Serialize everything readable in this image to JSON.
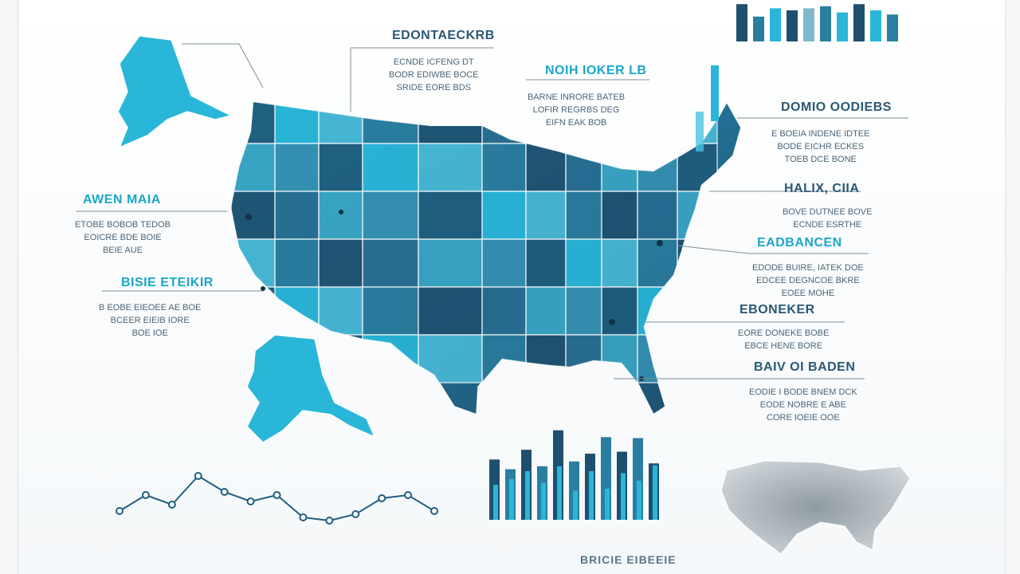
{
  "colors": {
    "navy": "#1f4f6e",
    "teal": "#2a7fa0",
    "cyan": "#29b6d8",
    "gray": "#9aa4ab"
  },
  "labels": [
    {
      "id": "top-center",
      "title": "EDONTAECKRB",
      "body": "ECNDE ICFENG DT\nBODR EDIWBE BOCE\nSRIDE EORE BDS"
    },
    {
      "id": "upper-mid",
      "title": "NOIH IOKER LB",
      "body": "BARNE INRORE BATEB\nLOFIR REGRBS DEG\nEIFN EAK BOB"
    },
    {
      "id": "right-1",
      "title": "DOMIO OODIEBS",
      "body": "E BOEIA INDENE IDTEE\nBODE EICHR ECKES\nTOEB DCE BONE"
    },
    {
      "id": "right-2",
      "title": "HALIX, CIIA",
      "body": "BOVE DUTNEE BOVE\nECNDE ESRTHE"
    },
    {
      "id": "right-3",
      "title": "EADBANCEN",
      "body": "EDODE BUIRE, IATEK DOE\nEDCEE DEGNCOE BKRE\nEOEE MOHE"
    },
    {
      "id": "right-4",
      "title": "EBONEKER",
      "body": "EORE DONEKE BOBE\nEBCE HENE BORE"
    },
    {
      "id": "right-5",
      "title": "BAIV OI BADEN",
      "body": "EODIE I BODE BNEM DCK\nEODE NOBRE E ABE\nCORE IOEIE OOE"
    },
    {
      "id": "left-1",
      "title": "AWEN MAIA",
      "body": "ETOBE BOBOB TEDOB\nEOICRE BDE BOIE\nBEIE AUE"
    },
    {
      "id": "left-2",
      "title": "BISIE ETEIKIR",
      "body": "B EOBE EIEOEE AE BOE\nBCEER EIEIB IORE\nBOE IOE"
    }
  ],
  "footer": "BRICIE EIBEEIE",
  "bottom_bar_values": [
    0.62,
    0.52,
    0.72,
    0.55,
    0.92,
    0.6,
    0.68,
    0.85,
    0.7,
    0.84,
    0.58
  ],
  "bottom_bar_overlay": [
    0.36,
    0.42,
    0.5,
    0.38,
    0.55,
    0.3,
    0.5,
    0.32,
    0.48,
    0.4,
    0.56
  ],
  "top_bar_values": [
    0.9,
    0.6,
    0.8,
    0.75,
    0.8,
    0.85,
    0.7,
    0.9,
    0.75,
    0.65
  ],
  "line_values": [
    0.3,
    0.55,
    0.4,
    0.85,
    0.6,
    0.45,
    0.55,
    0.2,
    0.15,
    0.25,
    0.5,
    0.55,
    0.3
  ],
  "map_palette": [
    "#1f5a7a",
    "#2a7a9c",
    "#3aa5c4",
    "#29b6d8",
    "#1e4f6e",
    "#3590b2",
    "#4ab8d6",
    "#276c8f"
  ]
}
